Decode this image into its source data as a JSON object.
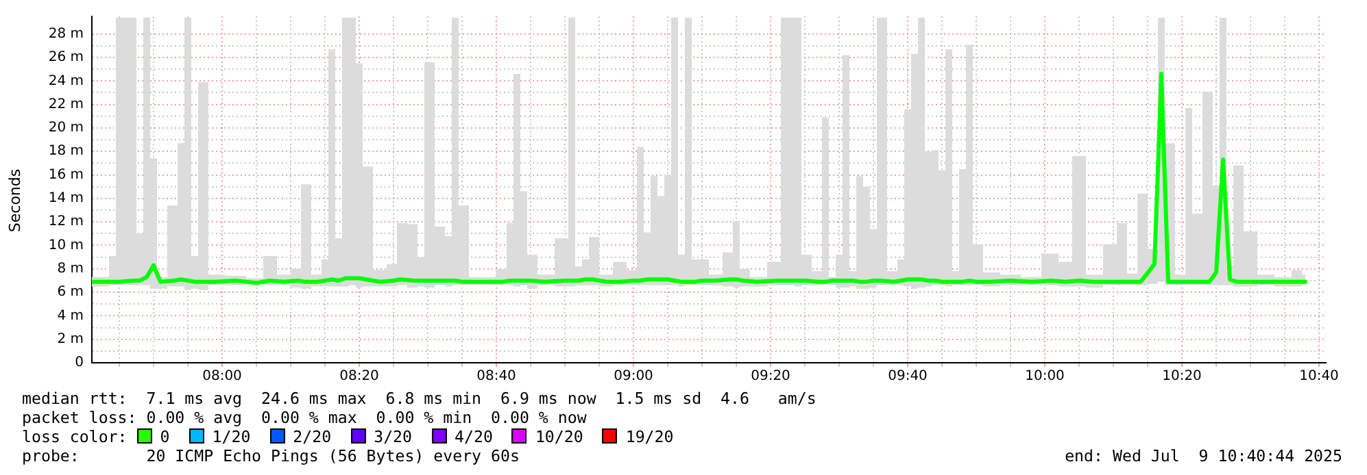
{
  "chart_data": {
    "type": "line",
    "ylabel": "Seconds",
    "marker": "none",
    "grid": true,
    "xlim": [
      "2025-07-09T07:41",
      "2025-07-09T10:41"
    ],
    "xticks": [
      {
        "value": "2025-07-09T07:45",
        "label": null
      },
      {
        "value": "2025-07-09T07:50",
        "label": null
      },
      {
        "value": "2025-07-09T07:55",
        "label": null
      },
      {
        "value": "2025-07-09T08:00",
        "label": "08:00"
      },
      {
        "value": "2025-07-09T08:05",
        "label": null
      },
      {
        "value": "2025-07-09T08:10",
        "label": null
      },
      {
        "value": "2025-07-09T08:15",
        "label": null
      },
      {
        "value": "2025-07-09T08:20",
        "label": "08:20"
      },
      {
        "value": "2025-07-09T08:25",
        "label": null
      },
      {
        "value": "2025-07-09T08:30",
        "label": null
      },
      {
        "value": "2025-07-09T08:35",
        "label": null
      },
      {
        "value": "2025-07-09T08:40",
        "label": "08:40"
      },
      {
        "value": "2025-07-09T08:45",
        "label": null
      },
      {
        "value": "2025-07-09T08:50",
        "label": null
      },
      {
        "value": "2025-07-09T08:55",
        "label": null
      },
      {
        "value": "2025-07-09T09:00",
        "label": "09:00"
      },
      {
        "value": "2025-07-09T09:05",
        "label": null
      },
      {
        "value": "2025-07-09T09:10",
        "label": null
      },
      {
        "value": "2025-07-09T09:15",
        "label": null
      },
      {
        "value": "2025-07-09T09:20",
        "label": "09:20"
      },
      {
        "value": "2025-07-09T09:25",
        "label": null
      },
      {
        "value": "2025-07-09T09:30",
        "label": null
      },
      {
        "value": "2025-07-09T09:35",
        "label": null
      },
      {
        "value": "2025-07-09T09:40",
        "label": "09:40"
      },
      {
        "value": "2025-07-09T09:45",
        "label": null
      },
      {
        "value": "2025-07-09T09:50",
        "label": null
      },
      {
        "value": "2025-07-09T09:55",
        "label": null
      },
      {
        "value": "2025-07-09T10:00",
        "label": "10:00"
      },
      {
        "value": "2025-07-09T10:05",
        "label": null
      },
      {
        "value": "2025-07-09T10:10",
        "label": null
      },
      {
        "value": "2025-07-09T10:15",
        "label": null
      },
      {
        "value": "2025-07-09T10:20",
        "label": "10:20"
      },
      {
        "value": "2025-07-09T10:25",
        "label": null
      },
      {
        "value": "2025-07-09T10:30",
        "label": null
      },
      {
        "value": "2025-07-09T10:35",
        "label": null
      },
      {
        "value": "2025-07-09T10:40",
        "label": "10:40"
      }
    ],
    "ylim": [
      0,
      29.5
    ],
    "yticks": [
      0,
      {
        "value": 1,
        "label": null
      },
      {
        "value": 2,
        "label": "2 m"
      },
      {
        "value": 3,
        "label": null
      },
      {
        "value": 4,
        "label": "4 m"
      },
      {
        "value": 5,
        "label": null
      },
      {
        "value": 6,
        "label": "6 m"
      },
      {
        "value": 7,
        "label": null
      },
      {
        "value": 8,
        "label": "8 m"
      },
      {
        "value": 9,
        "label": null
      },
      {
        "value": 10,
        "label": "10 m"
      },
      {
        "value": 11,
        "label": null
      },
      {
        "value": 12,
        "label": "12 m"
      },
      {
        "value": 13,
        "label": null
      },
      {
        "value": 14,
        "label": "14 m"
      },
      {
        "value": 15,
        "label": null
      },
      {
        "value": 16,
        "label": "16 m"
      },
      {
        "value": 17,
        "label": null
      },
      {
        "value": 18,
        "label": "18 m"
      },
      {
        "value": 19,
        "label": null
      },
      {
        "value": 20,
        "label": "20 m"
      },
      {
        "value": 21,
        "label": null
      },
      {
        "value": 22,
        "label": "22 m"
      },
      {
        "value": 23,
        "label": null
      },
      {
        "value": 24,
        "label": "24 m"
      },
      {
        "value": 25,
        "label": null
      },
      {
        "value": 26,
        "label": "26 m"
      },
      {
        "value": 27,
        "label": null
      },
      {
        "value": 28,
        "label": "28 m"
      }
    ],
    "x": [
      "2025-07-09T07:41",
      "2025-07-09T07:43",
      "2025-07-09T07:44",
      "2025-07-09T07:45",
      "2025-07-09T07:47",
      "2025-07-09T07:48",
      "2025-07-09T07:49",
      "2025-07-09T07:50",
      "2025-07-09T07:51",
      "2025-07-09T07:53",
      "2025-07-09T07:54",
      "2025-07-09T07:55",
      "2025-07-09T07:56",
      "2025-07-09T07:57",
      "2025-07-09T07:59",
      "2025-07-09T08:02",
      "2025-07-09T08:05",
      "2025-07-09T08:07",
      "2025-07-09T08:09",
      "2025-07-09T08:11",
      "2025-07-09T08:12",
      "2025-07-09T08:14",
      "2025-07-09T08:15",
      "2025-07-09T08:16",
      "2025-07-09T08:17",
      "2025-07-09T08:18",
      "2025-07-09T08:19",
      "2025-07-09T08:20",
      "2025-07-09T08:21",
      "2025-07-09T08:23",
      "2025-07-09T08:25",
      "2025-07-09T08:26",
      "2025-07-09T08:28",
      "2025-07-09T08:29",
      "2025-07-09T08:30",
      "2025-07-09T08:32",
      "2025-07-09T08:33",
      "2025-07-09T08:34",
      "2025-07-09T08:35",
      "2025-07-09T08:37",
      "2025-07-09T08:39",
      "2025-07-09T08:41",
      "2025-07-09T08:42",
      "2025-07-09T08:43",
      "2025-07-09T08:44",
      "2025-07-09T08:45",
      "2025-07-09T08:47",
      "2025-07-09T08:50",
      "2025-07-09T08:51",
      "2025-07-09T08:52",
      "2025-07-09T08:53",
      "2025-07-09T08:54",
      "2025-07-09T08:56",
      "2025-07-09T08:58",
      "2025-07-09T09:00",
      "2025-07-09T09:01",
      "2025-07-09T09:02",
      "2025-07-09T09:03",
      "2025-07-09T09:04",
      "2025-07-09T09:05",
      "2025-07-09T09:06",
      "2025-07-09T09:07",
      "2025-07-09T09:08",
      "2025-07-09T09:09",
      "2025-07-09T09:10",
      "2025-07-09T09:12",
      "2025-07-09T09:14",
      "2025-07-09T09:15",
      "2025-07-09T09:16",
      "2025-07-09T09:18",
      "2025-07-09T09:21",
      "2025-07-09T09:22",
      "2025-07-09T09:23",
      "2025-07-09T09:24",
      "2025-07-09T09:25",
      "2025-07-09T09:27",
      "2025-07-09T09:28",
      "2025-07-09T09:29",
      "2025-07-09T09:30",
      "2025-07-09T09:31",
      "2025-07-09T09:32",
      "2025-07-09T09:33",
      "2025-07-09T09:34",
      "2025-07-09T09:35",
      "2025-07-09T09:36",
      "2025-07-09T09:38",
      "2025-07-09T09:39",
      "2025-07-09T09:40",
      "2025-07-09T09:41",
      "2025-07-09T09:42",
      "2025-07-09T09:43",
      "2025-07-09T09:44",
      "2025-07-09T09:45",
      "2025-07-09T09:46",
      "2025-07-09T09:47",
      "2025-07-09T09:48",
      "2025-07-09T09:49",
      "2025-07-09T09:50",
      "2025-07-09T09:52",
      "2025-07-09T09:55",
      "2025-07-09T09:58",
      "2025-07-09T10:01",
      "2025-07-09T10:03",
      "2025-07-09T10:05",
      "2025-07-09T10:07",
      "2025-07-09T10:10",
      "2025-07-09T10:11",
      "2025-07-09T10:13",
      "2025-07-09T10:14",
      "2025-07-09T10:16",
      "2025-07-09T10:17",
      "2025-07-09T10:18",
      "2025-07-09T10:20",
      "2025-07-09T10:21",
      "2025-07-09T10:22",
      "2025-07-09T10:24",
      "2025-07-09T10:25",
      "2025-07-09T10:26",
      "2025-07-09T10:27",
      "2025-07-09T10:28",
      "2025-07-09T10:30",
      "2025-07-09T10:32",
      "2025-07-09T10:35",
      "2025-07-09T10:37",
      "2025-07-09T10:38"
    ],
    "series": [
      {
        "color": "#00ff00",
        "values": [
          6.9,
          6.9,
          6.9,
          6.9,
          7.0,
          7.0,
          7.3,
          8.3,
          6.9,
          7.0,
          7.1,
          7.0,
          6.9,
          6.9,
          6.9,
          7.0,
          6.8,
          7.0,
          6.9,
          7.0,
          6.9,
          6.9,
          7.0,
          7.1,
          7.0,
          7.2,
          7.2,
          7.2,
          7.1,
          6.9,
          7.0,
          7.1,
          7.0,
          7.0,
          7.0,
          7.0,
          7.0,
          7.0,
          6.9,
          6.9,
          6.9,
          6.9,
          7.0,
          7.0,
          7.0,
          7.0,
          6.9,
          7.0,
          7.0,
          7.0,
          7.1,
          7.1,
          6.9,
          6.9,
          7.0,
          7.0,
          7.1,
          7.1,
          7.1,
          7.1,
          7.0,
          6.9,
          6.9,
          6.9,
          7.0,
          7.0,
          7.1,
          7.1,
          7.0,
          6.9,
          7.0,
          7.0,
          7.0,
          7.0,
          7.0,
          6.9,
          6.9,
          7.0,
          7.0,
          7.0,
          7.0,
          6.9,
          6.9,
          7.0,
          7.0,
          6.9,
          7.0,
          7.1,
          7.1,
          7.1,
          7.0,
          7.0,
          6.9,
          6.9,
          6.9,
          6.9,
          7.0,
          6.9,
          6.9,
          7.0,
          6.9,
          7.0,
          6.9,
          7.0,
          6.9,
          6.9,
          6.9,
          6.9,
          6.9,
          8.4,
          24.6,
          6.9,
          6.9,
          6.9,
          6.9,
          6.9,
          7.7,
          17.3,
          7.1,
          6.9,
          6.9,
          6.9,
          6.9,
          6.9,
          6.9
        ],
        "lower": [
          6.5,
          6.5,
          6.6,
          6.6,
          6.6,
          6.6,
          6.6,
          6.3,
          6.3,
          6.5,
          6.5,
          6.2,
          6.3,
          6.2,
          6.6,
          6.6,
          6.7,
          6.6,
          6.6,
          6.4,
          6.3,
          6.5,
          6.5,
          6.5,
          6.5,
          6.5,
          6.6,
          6.4,
          6.5,
          6.5,
          6.5,
          6.6,
          6.4,
          6.5,
          6.4,
          6.6,
          6.5,
          6.6,
          6.6,
          6.6,
          6.6,
          6.6,
          6.6,
          6.5,
          6.6,
          6.3,
          6.6,
          6.5,
          6.5,
          6.6,
          6.6,
          6.6,
          6.5,
          6.6,
          6.6,
          6.6,
          6.6,
          6.6,
          6.6,
          6.6,
          6.6,
          6.5,
          6.6,
          6.6,
          6.6,
          6.6,
          6.5,
          6.4,
          6.5,
          6.5,
          6.6,
          6.6,
          6.6,
          6.5,
          6.6,
          6.6,
          6.6,
          6.6,
          6.4,
          6.4,
          6.5,
          6.3,
          6.3,
          6.4,
          6.6,
          6.6,
          6.6,
          6.5,
          6.3,
          6.4,
          6.5,
          6.6,
          6.6,
          6.5,
          6.6,
          6.6,
          6.6,
          6.6,
          6.5,
          6.6,
          6.6,
          6.6,
          6.5,
          6.5,
          6.4,
          6.6,
          6.6,
          6.6,
          6.6,
          6.7,
          6.9,
          6.6,
          6.6,
          6.6,
          6.6,
          6.6,
          6.6,
          6.6,
          6.6,
          6.5,
          6.5,
          6.6,
          6.5,
          6.5,
          6.6
        ],
        "upper": [
          7.3,
          7.3,
          9.1,
          29.4,
          29.4,
          11.0,
          29.4,
          17.4,
          7.3,
          13.4,
          18.7,
          29.4,
          9.1,
          23.9,
          7.5,
          7.4,
          7.2,
          9.1,
          7.5,
          8.0,
          15.2,
          7.5,
          8.8,
          26.7,
          10.6,
          29.4,
          29.4,
          25.5,
          16.7,
          7.9,
          8.4,
          11.9,
          11.8,
          9.0,
          25.6,
          11.6,
          10.8,
          29.4,
          13.4,
          7.3,
          7.3,
          8.0,
          11.9,
          24.6,
          14.6,
          9.2,
          7.5,
          10.6,
          29.4,
          8.2,
          8.8,
          10.7,
          7.5,
          8.6,
          7.9,
          18.4,
          11.1,
          15.9,
          14.2,
          16.0,
          29.4,
          9.2,
          29.4,
          8.8,
          8.8,
          7.5,
          9.4,
          12.1,
          8.0,
          7.3,
          8.6,
          29.4,
          29.4,
          29.4,
          9.2,
          7.8,
          20.9,
          7.3,
          9.2,
          26.2,
          7.8,
          15.9,
          15.0,
          11.4,
          29.4,
          7.8,
          8.8,
          21.6,
          26.3,
          29.4,
          18.0,
          18.1,
          16.4,
          26.7,
          7.8,
          16.5,
          27.1,
          10.1,
          7.7,
          7.5,
          7.3,
          9.3,
          8.6,
          17.6,
          7.5,
          10.1,
          11.9,
          7.6,
          14.4,
          9.7,
          29.4,
          18.7,
          7.5,
          21.7,
          12.7,
          23.1,
          15.1,
          29.4,
          8.3,
          16.8,
          11.2,
          7.5,
          7.3,
          7.9,
          7.5
        ]
      }
    ],
    "annotations": [
      "median rtt:  7.1 ms avg  24.6 ms max  6.8 ms min  6.9 ms now  1.5 ms sd  4.6   am/s",
      "packet loss: 0.00 % avg  0.00 % max  0.00 % min  0.00 % now",
      "loss color:",
      "0",
      "1/20",
      "2/20",
      "3/20",
      "4/20",
      "10/20",
      "19/20",
      "probe:       20 ICMP Echo Pings (56 Bytes) every 60s",
      "end: Wed Jul  9 10:40:44 2025"
    ]
  }
}
